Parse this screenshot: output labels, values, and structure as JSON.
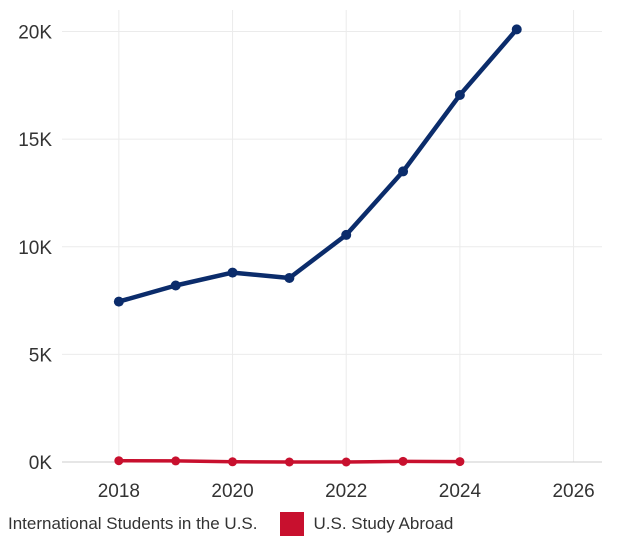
{
  "chart_data": {
    "type": "line",
    "x": [
      2018,
      2019,
      2020,
      2021,
      2022,
      2023,
      2024,
      2025
    ],
    "series": [
      {
        "name": "International Students in the U.S.",
        "color": "#0b2c6b",
        "x": [
          2018,
          2019,
          2020,
          2021,
          2022,
          2023,
          2024,
          2025
        ],
        "values": [
          7450,
          8200,
          8800,
          8550,
          10550,
          13500,
          17050,
          20100
        ]
      },
      {
        "name": "U.S. Study Abroad",
        "color": "#c8102e",
        "x": [
          2018,
          2019,
          2020,
          2021,
          2022,
          2023,
          2024
        ],
        "values": [
          60,
          50,
          10,
          0,
          0,
          30,
          20
        ]
      }
    ],
    "xlim": [
      2017,
      2026.5
    ],
    "ylim": [
      0,
      21000
    ],
    "xticks": [
      2018,
      2020,
      2022,
      2024,
      2026
    ],
    "yticks": [
      0,
      5000,
      10000,
      15000,
      20000
    ],
    "ytick_labels": [
      "0K",
      "5K",
      "10K",
      "15K",
      "20K"
    ],
    "grid": true,
    "legend_position": "bottom-left"
  }
}
